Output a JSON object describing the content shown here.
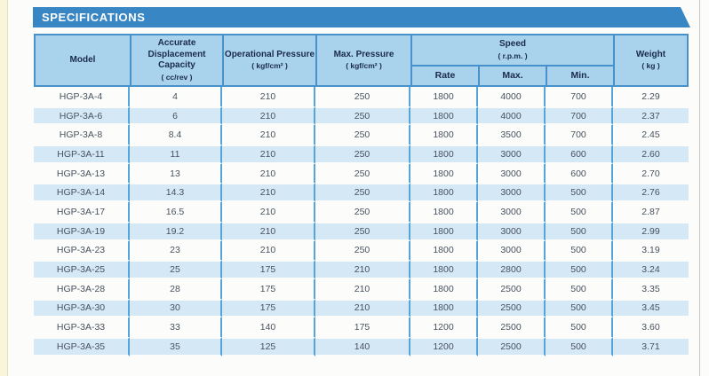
{
  "banner": {
    "title": "SPECIFICATIONS"
  },
  "table": {
    "header": {
      "model": "Model",
      "capacity": "Accurate Displacement Capacity",
      "capacity_unit": "( cc/rev )",
      "operational_pressure": "Operational Pressure",
      "operational_pressure_unit": "( kgf/cm² )",
      "max_pressure": "Max. Pressure",
      "max_pressure_unit": "( kgf/cm² )",
      "speed": "Speed",
      "speed_unit": "( r.p.m. )",
      "speed_children": {
        "rate": "Rate",
        "max": "Max.",
        "min": "Min."
      },
      "weight": "Weight",
      "weight_unit": "( kg )"
    },
    "column_keys": [
      "model",
      "capacity",
      "operational-pressure",
      "max-pressure",
      "speed-rate",
      "speed-max",
      "speed-min",
      "weight"
    ],
    "rows": [
      [
        "HGP-3A-4",
        "4",
        "210",
        "250",
        "1800",
        "4000",
        "700",
        "2.29"
      ],
      [
        "HGP-3A-6",
        "6",
        "210",
        "250",
        "1800",
        "4000",
        "700",
        "2.37"
      ],
      [
        "HGP-3A-8",
        "8.4",
        "210",
        "250",
        "1800",
        "3500",
        "700",
        "2.45"
      ],
      [
        "HGP-3A-11",
        "11",
        "210",
        "250",
        "1800",
        "3000",
        "600",
        "2.60"
      ],
      [
        "HGP-3A-13",
        "13",
        "210",
        "250",
        "1800",
        "3000",
        "600",
        "2.70"
      ],
      [
        "HGP-3A-14",
        "14.3",
        "210",
        "250",
        "1800",
        "3000",
        "500",
        "2.76"
      ],
      [
        "HGP-3A-17",
        "16.5",
        "210",
        "250",
        "1800",
        "3000",
        "500",
        "2.87"
      ],
      [
        "HGP-3A-19",
        "19.2",
        "210",
        "250",
        "1800",
        "3000",
        "500",
        "2.99"
      ],
      [
        "HGP-3A-23",
        "23",
        "210",
        "250",
        "1800",
        "3000",
        "500",
        "3.19"
      ],
      [
        "HGP-3A-25",
        "25",
        "175",
        "210",
        "1800",
        "2800",
        "500",
        "3.24"
      ],
      [
        "HGP-3A-28",
        "28",
        "175",
        "210",
        "1800",
        "2500",
        "500",
        "3.35"
      ],
      [
        "HGP-3A-30",
        "30",
        "175",
        "210",
        "1800",
        "2500",
        "500",
        "3.45"
      ],
      [
        "HGP-3A-33",
        "33",
        "140",
        "175",
        "1200",
        "2500",
        "500",
        "3.60"
      ],
      [
        "HGP-3A-35",
        "35",
        "125",
        "140",
        "1200",
        "2500",
        "500",
        "3.71"
      ]
    ]
  },
  "colors": {
    "banner_blue": "#3886C3",
    "header_fill": "#A9D3EC",
    "stripe_fill": "#D5E8F5",
    "border_blue": "#4792CB",
    "separator_blue": "#56A5DA",
    "header_text": "#1A2A4E",
    "body_text": "#48525F"
  }
}
